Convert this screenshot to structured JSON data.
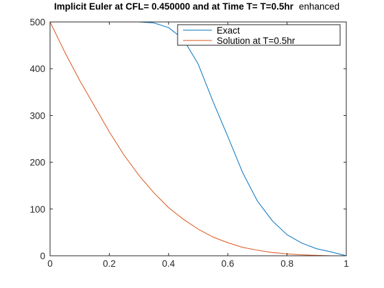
{
  "chart_data": {
    "type": "line",
    "title": "Implicit Euler at CFL= 0.450000 and at Time T= T=0.5hr",
    "title_suffix": "enhanced",
    "xlabel": "",
    "ylabel": "",
    "xlim": [
      0,
      1
    ],
    "ylim": [
      0,
      500
    ],
    "xticks": [
      0,
      0.2,
      0.4,
      0.6,
      0.8,
      1
    ],
    "xtick_labels": [
      "0",
      "0.2",
      "0.4",
      "0.6",
      "0.8",
      "1"
    ],
    "yticks": [
      0,
      100,
      200,
      300,
      400,
      500
    ],
    "ytick_labels": [
      "0",
      "100",
      "200",
      "300",
      "400",
      "500"
    ],
    "grid": false,
    "legend_position": "top-right",
    "series": [
      {
        "name": "Exact",
        "color": "#0072BD",
        "x": [
          0,
          0.05,
          0.1,
          0.15,
          0.2,
          0.25,
          0.3,
          0.35,
          0.4,
          0.45,
          0.5,
          0.55,
          0.6,
          0.65,
          0.7,
          0.75,
          0.8,
          0.85,
          0.9,
          0.95,
          1.0
        ],
        "y": [
          500,
          500,
          500,
          500,
          500,
          500,
          500,
          498,
          488,
          463,
          410,
          330,
          255,
          178,
          117,
          75,
          45,
          27,
          15,
          8,
          0
        ]
      },
      {
        "name": "Solution at T=0.5hr",
        "color": "#D95319",
        "x": [
          0,
          0.05,
          0.1,
          0.15,
          0.2,
          0.25,
          0.3,
          0.35,
          0.4,
          0.45,
          0.5,
          0.55,
          0.6,
          0.65,
          0.7,
          0.75,
          0.8,
          0.85,
          0.9,
          0.95,
          1.0
        ],
        "y": [
          500,
          435,
          375,
          320,
          265,
          215,
          172,
          135,
          103,
          78,
          57,
          40,
          28,
          18,
          12,
          7,
          4,
          2,
          1,
          0,
          0
        ]
      }
    ]
  }
}
